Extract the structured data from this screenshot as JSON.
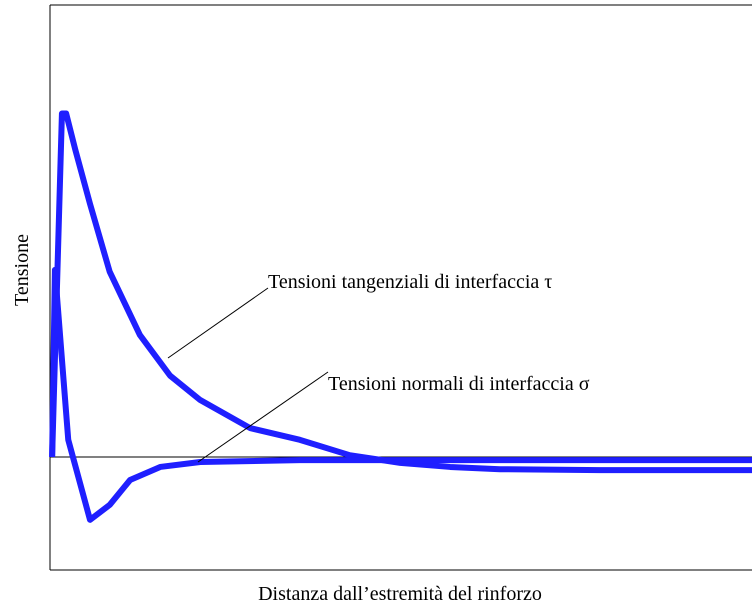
{
  "chart_data": {
    "type": "line",
    "xlabel": "Distanza dall’estremità del rinforzo",
    "ylabel": "Tensione",
    "xlim": [
      0,
      100
    ],
    "ylim": [
      -25,
      100
    ],
    "zero_line": true,
    "series": [
      {
        "name": "Tensioni tangenziali di interfaccia τ",
        "color": "#1f1fff",
        "x": [
          0.3,
          1.7,
          2.3,
          3.6,
          5.7,
          8.5,
          12.8,
          17.1,
          21.4,
          28.5,
          35.6,
          42.7,
          49.9,
          57,
          64.1,
          78.3,
          100
        ],
        "values": [
          0,
          76,
          76,
          68,
          56,
          41,
          27,
          18,
          12.6,
          6.4,
          3.8,
          0.4,
          -1.3,
          -2.2,
          -2.7,
          -2.9,
          -2.9
        ]
      },
      {
        "name": "Tensioni normali di interfaccia σ",
        "color": "#1f1fff",
        "x": [
          0.3,
          0.7,
          2.6,
          5.7,
          8.5,
          11.4,
          15.7,
          21.4,
          35.6,
          100
        ],
        "values": [
          0,
          41.4,
          3.8,
          -13.9,
          -10.6,
          -5.1,
          -2.2,
          -1.1,
          -0.7,
          -0.7
        ]
      }
    ]
  }
}
